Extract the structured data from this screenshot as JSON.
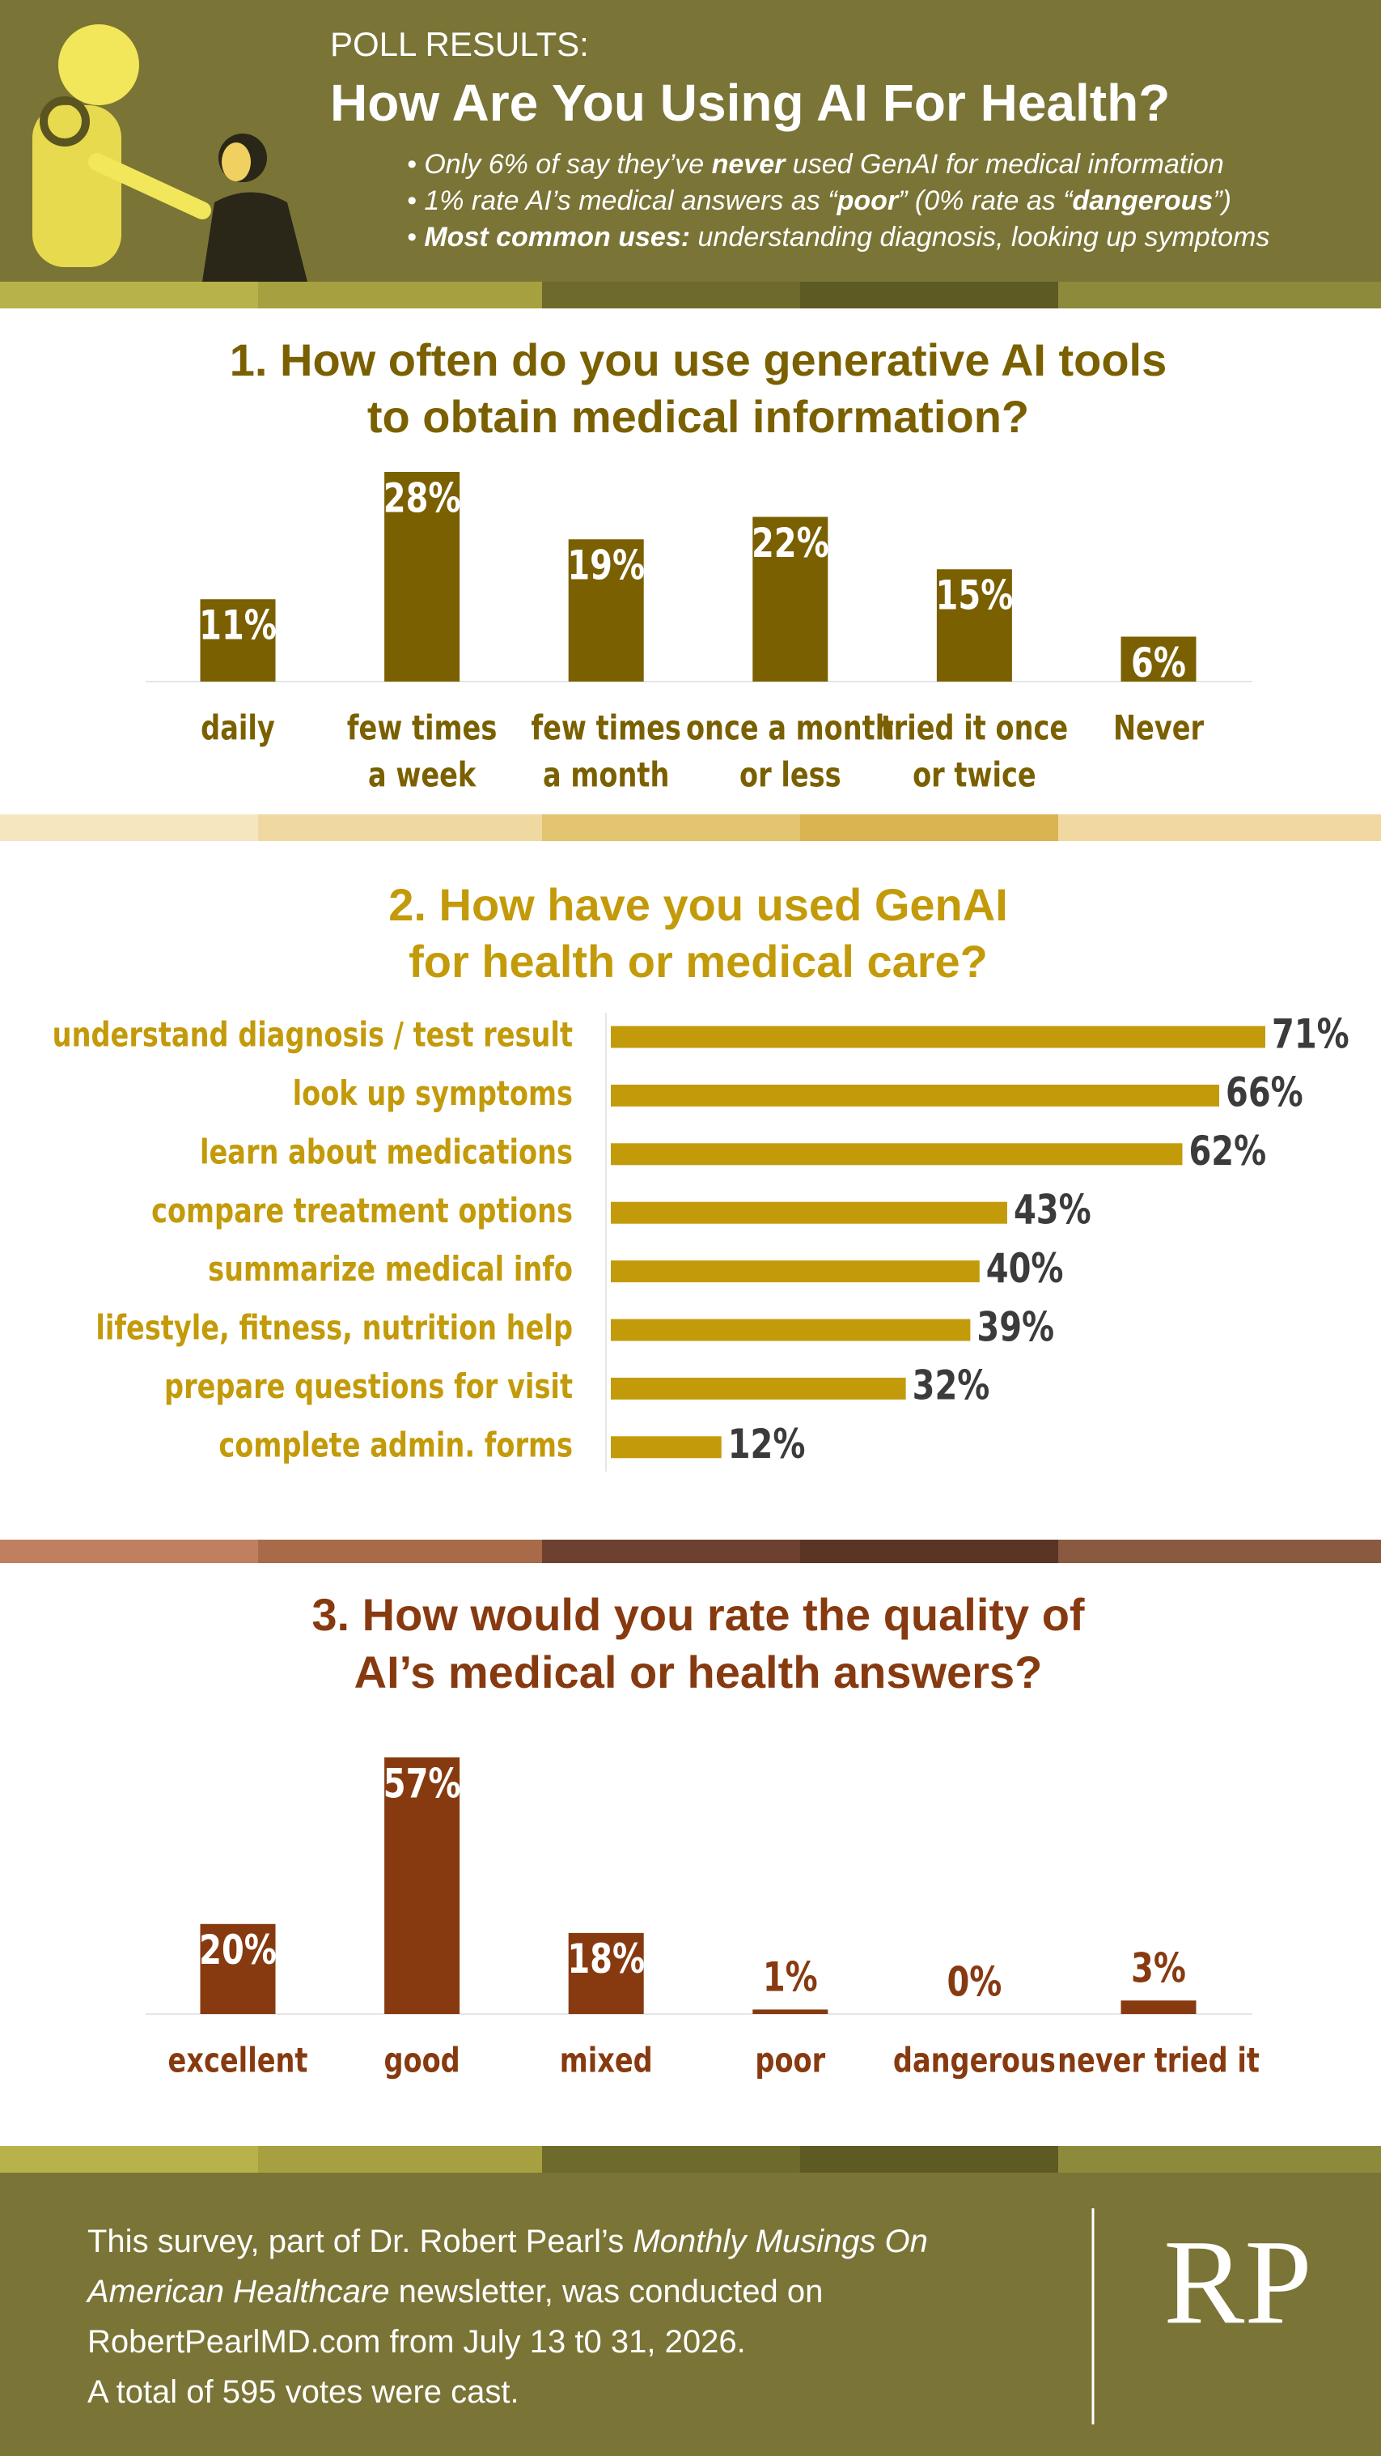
{
  "header": {
    "kicker": "POLL RESULTS:",
    "title": "How Are You Using AI For Health?",
    "bullets": [
      {
        "segments": [
          {
            "text": "• Only 6% of say they’ve "
          },
          {
            "text": "never",
            "bold": true
          },
          {
            "text": " used GenAI for medical information"
          }
        ]
      },
      {
        "segments": [
          {
            "text": "• 1% rate AI’s medical answers as “"
          },
          {
            "text": "poor",
            "bold": true
          },
          {
            "text": "” (0% rate as “"
          },
          {
            "text": "dangerous",
            "bold": true
          },
          {
            "text": "”)"
          }
        ]
      },
      {
        "segments": [
          {
            "text": "• "
          },
          {
            "text": "Most common uses:",
            "bold": true
          },
          {
            "text": " understanding diagnosis, looking up symptoms"
          }
        ]
      }
    ]
  },
  "chart_data": [
    {
      "type": "bar",
      "title": [
        "1. How often do you use generative AI tools",
        "to obtain medical information?"
      ],
      "categories": [
        [
          "daily"
        ],
        [
          "few times",
          "a week"
        ],
        [
          "few times",
          "a month"
        ],
        [
          "once a month",
          "or less"
        ],
        [
          "tried it once",
          "or twice"
        ],
        [
          "Never"
        ]
      ],
      "values": [
        11,
        28,
        19,
        22,
        15,
        6
      ],
      "value_labels": [
        "11%",
        "28%",
        "19%",
        "22%",
        "15%",
        "6%"
      ],
      "color": "#7a6000"
    },
    {
      "type": "barh",
      "title": [
        "2. How have you used GenAI",
        "for health or medical care?"
      ],
      "categories": [
        "understand diagnosis / test result",
        "look up symptoms",
        "learn about medications",
        "compare treatment options",
        "summarize medical info",
        "lifestyle, fitness, nutrition help",
        "prepare questions for visit",
        "complete admin. forms"
      ],
      "values": [
        71,
        66,
        62,
        43,
        40,
        39,
        32,
        12
      ],
      "value_labels": [
        "71%",
        "66%",
        "62%",
        "43%",
        "40%",
        "39%",
        "32%",
        "12%"
      ],
      "color": "#c39a0a"
    },
    {
      "type": "bar",
      "title": [
        "3. How would you rate the quality of",
        "AI’s medical or health answers?"
      ],
      "categories": [
        [
          "excellent"
        ],
        [
          "good"
        ],
        [
          "mixed"
        ],
        [
          "poor"
        ],
        [
          "dangerous"
        ],
        [
          "never tried it"
        ]
      ],
      "values": [
        20,
        57,
        18,
        1,
        0,
        3
      ],
      "value_labels": [
        "20%",
        "57%",
        "18%",
        "1%",
        "0%",
        "3%"
      ],
      "color": "#873a10"
    }
  ],
  "footer": {
    "lines": [
      {
        "segments": [
          {
            "text": "This survey, part of Dr. Robert Pearl’s "
          },
          {
            "text": "Monthly Musings On",
            "italic": true
          }
        ]
      },
      {
        "segments": [
          {
            "text": "American Healthcare",
            "italic": true
          },
          {
            "text": " newsletter, was conducted on"
          }
        ]
      },
      {
        "segments": [
          {
            "text": "RobertPearlMD.com from July 13 t0 31, 2026."
          }
        ]
      },
      {
        "segments": [
          {
            "text": "A total of 595 votes were cast."
          }
        ]
      }
    ],
    "logo": "RP"
  }
}
